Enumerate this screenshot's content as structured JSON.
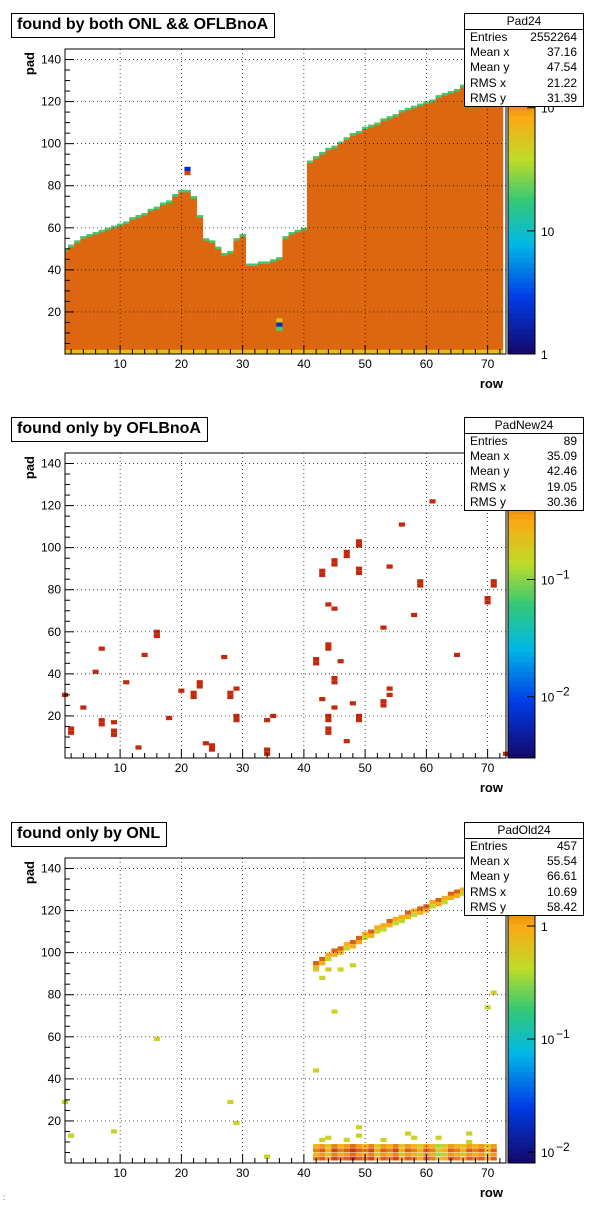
{
  "chart_data": [
    {
      "type": "heatmap",
      "title": "found by both ONL && OFLBnoA",
      "xlabel": "row",
      "ylabel": "pad",
      "xlim": [
        1,
        73
      ],
      "ylim": [
        0,
        145
      ],
      "x_ticks": [
        "10",
        "20",
        "30",
        "40",
        "50",
        "60",
        "70"
      ],
      "y_ticks": [
        "20",
        "40",
        "60",
        "80",
        "100",
        "120",
        "140"
      ],
      "z_scale": "log",
      "z_ticks": [
        {
          "label": "1",
          "exp": ""
        },
        {
          "label": "10",
          "exp": ""
        },
        {
          "label": "10",
          "exp": "2"
        }
      ],
      "zlim": [
        1,
        300
      ],
      "grid": true,
      "stats": {
        "name": "Pad24",
        "rows": [
          {
            "label": "Entries",
            "value": "2552264"
          },
          {
            "label": "Mean x",
            "value": "37.16"
          },
          {
            "label": "Mean y",
            "value": "47.54"
          },
          {
            "label": "RMS x",
            "value": "21.22"
          },
          {
            "label": "RMS y",
            "value": "31.39"
          }
        ]
      },
      "filled_rows": {
        "rows": [
          1,
          2,
          3,
          4,
          5,
          6,
          7,
          8,
          9,
          10,
          11,
          12,
          13,
          14,
          15,
          16,
          17,
          18,
          19,
          20,
          21,
          22,
          23,
          24,
          25,
          26,
          27,
          28,
          29,
          30,
          31,
          32,
          33,
          34,
          35,
          36,
          37,
          38,
          39,
          40,
          41,
          42,
          43,
          44,
          45,
          46,
          47,
          48,
          49,
          50,
          51,
          52,
          53,
          54,
          55,
          56,
          57,
          58,
          59,
          60,
          61,
          62,
          63,
          64,
          65,
          66,
          67,
          68,
          69,
          70,
          71,
          72
        ],
        "max_pad": [
          50,
          52,
          54,
          56,
          57,
          58,
          59,
          60,
          61,
          62,
          63,
          65,
          66,
          67,
          69,
          70,
          72,
          73,
          76,
          78,
          78,
          75,
          66,
          55,
          54,
          51,
          48,
          49,
          55,
          57,
          43,
          43,
          44,
          44,
          45,
          46,
          56,
          58,
          59,
          60,
          92,
          94,
          96,
          98,
          99,
          101,
          103,
          105,
          106,
          108,
          109,
          110,
          112,
          113,
          114,
          116,
          117,
          118,
          119,
          120,
          121,
          123,
          124,
          125,
          126,
          128,
          129,
          131,
          132,
          133,
          134,
          135
        ],
        "z": 200
      },
      "points": [
        {
          "x": 36,
          "y": 12,
          "z": 20
        },
        {
          "x": 36,
          "y": 14,
          "z": 2
        },
        {
          "x": 36,
          "y": 16,
          "z": 60
        },
        {
          "x": 21,
          "y": 88,
          "z": 2
        },
        {
          "x": 21,
          "y": 86,
          "z": 200
        }
      ]
    },
    {
      "type": "heatmap",
      "title": "found only by OFLBnoA",
      "xlabel": "row",
      "ylabel": "pad",
      "xlim": [
        1,
        73
      ],
      "ylim": [
        0,
        145
      ],
      "x_ticks": [
        "10",
        "20",
        "30",
        "40",
        "50",
        "60",
        "70"
      ],
      "y_ticks": [
        "20",
        "40",
        "60",
        "80",
        "100",
        "120",
        "140"
      ],
      "z_scale": "log",
      "z_ticks": [
        {
          "label": "10",
          "exp": "−2"
        },
        {
          "label": "10",
          "exp": "−1"
        }
      ],
      "zlim": [
        0.003,
        1.2
      ],
      "grid": true,
      "stats": {
        "name": "PadNew24",
        "rows": [
          {
            "label": "Entries",
            "value": "89"
          },
          {
            "label": "Mean x",
            "value": "35.09"
          },
          {
            "label": "Mean y",
            "value": "42.46"
          },
          {
            "label": "RMS x",
            "value": "19.05"
          },
          {
            "label": "RMS y",
            "value": "30.36"
          }
        ]
      },
      "points": [
        {
          "x": 1,
          "y": 30,
          "z": 1
        },
        {
          "x": 2,
          "y": 12,
          "z": 1
        },
        {
          "x": 2,
          "y": 14,
          "z": 1
        },
        {
          "x": 4,
          "y": 24,
          "z": 1
        },
        {
          "x": 6,
          "y": 41,
          "z": 1
        },
        {
          "x": 7,
          "y": 16,
          "z": 1
        },
        {
          "x": 7,
          "y": 18,
          "z": 1
        },
        {
          "x": 7,
          "y": 52,
          "z": 1
        },
        {
          "x": 9,
          "y": 17,
          "z": 1
        },
        {
          "x": 9,
          "y": 13,
          "z": 1
        },
        {
          "x": 9,
          "y": 11,
          "z": 1
        },
        {
          "x": 11,
          "y": 36,
          "z": 1
        },
        {
          "x": 13,
          "y": 5,
          "z": 1
        },
        {
          "x": 14,
          "y": 49,
          "z": 1
        },
        {
          "x": 16,
          "y": 58,
          "z": 1
        },
        {
          "x": 16,
          "y": 60,
          "z": 1
        },
        {
          "x": 18,
          "y": 19,
          "z": 1
        },
        {
          "x": 20,
          "y": 32,
          "z": 1
        },
        {
          "x": 22,
          "y": 29,
          "z": 1
        },
        {
          "x": 22,
          "y": 31,
          "z": 1
        },
        {
          "x": 23,
          "y": 34,
          "z": 1
        },
        {
          "x": 23,
          "y": 36,
          "z": 1
        },
        {
          "x": 24,
          "y": 7,
          "z": 1
        },
        {
          "x": 25,
          "y": 4,
          "z": 1
        },
        {
          "x": 25,
          "y": 6,
          "z": 1
        },
        {
          "x": 27,
          "y": 48,
          "z": 1
        },
        {
          "x": 28,
          "y": 29,
          "z": 1
        },
        {
          "x": 28,
          "y": 31,
          "z": 1
        },
        {
          "x": 29,
          "y": 33,
          "z": 1
        },
        {
          "x": 29,
          "y": 18,
          "z": 1
        },
        {
          "x": 29,
          "y": 20,
          "z": 1
        },
        {
          "x": 34,
          "y": 18,
          "z": 1
        },
        {
          "x": 34,
          "y": 2,
          "z": 1
        },
        {
          "x": 34,
          "y": 4,
          "z": 1
        },
        {
          "x": 35,
          "y": 20,
          "z": 1
        },
        {
          "x": 42,
          "y": 45,
          "z": 1
        },
        {
          "x": 42,
          "y": 47,
          "z": 1
        },
        {
          "x": 43,
          "y": 28,
          "z": 1
        },
        {
          "x": 43,
          "y": 87,
          "z": 1
        },
        {
          "x": 43,
          "y": 89,
          "z": 1
        },
        {
          "x": 44,
          "y": 12,
          "z": 1
        },
        {
          "x": 44,
          "y": 14,
          "z": 1
        },
        {
          "x": 44,
          "y": 18,
          "z": 1
        },
        {
          "x": 44,
          "y": 20,
          "z": 1
        },
        {
          "x": 44,
          "y": 52,
          "z": 1
        },
        {
          "x": 44,
          "y": 54,
          "z": 1
        },
        {
          "x": 44,
          "y": 73,
          "z": 1
        },
        {
          "x": 45,
          "y": 71,
          "z": 1
        },
        {
          "x": 45,
          "y": 92,
          "z": 1
        },
        {
          "x": 45,
          "y": 94,
          "z": 1
        },
        {
          "x": 45,
          "y": 24,
          "z": 1
        },
        {
          "x": 45,
          "y": 36,
          "z": 1
        },
        {
          "x": 45,
          "y": 38,
          "z": 1
        },
        {
          "x": 46,
          "y": 46,
          "z": 1
        },
        {
          "x": 47,
          "y": 8,
          "z": 1
        },
        {
          "x": 47,
          "y": 96,
          "z": 1
        },
        {
          "x": 47,
          "y": 98,
          "z": 1
        },
        {
          "x": 48,
          "y": 26,
          "z": 1
        },
        {
          "x": 49,
          "y": 88,
          "z": 1
        },
        {
          "x": 49,
          "y": 90,
          "z": 1
        },
        {
          "x": 49,
          "y": 101,
          "z": 1
        },
        {
          "x": 49,
          "y": 103,
          "z": 1
        },
        {
          "x": 49,
          "y": 18,
          "z": 1
        },
        {
          "x": 49,
          "y": 20,
          "z": 1
        },
        {
          "x": 53,
          "y": 25,
          "z": 1
        },
        {
          "x": 53,
          "y": 27,
          "z": 1
        },
        {
          "x": 53,
          "y": 62,
          "z": 1
        },
        {
          "x": 54,
          "y": 30,
          "z": 1
        },
        {
          "x": 54,
          "y": 33,
          "z": 1
        },
        {
          "x": 54,
          "y": 91,
          "z": 1
        },
        {
          "x": 56,
          "y": 111,
          "z": 1
        },
        {
          "x": 58,
          "y": 68,
          "z": 1
        },
        {
          "x": 59,
          "y": 82,
          "z": 1
        },
        {
          "x": 59,
          "y": 84,
          "z": 1
        },
        {
          "x": 61,
          "y": 122,
          "z": 1
        },
        {
          "x": 65,
          "y": 49,
          "z": 1
        },
        {
          "x": 70,
          "y": 74,
          "z": 1
        },
        {
          "x": 70,
          "y": 76,
          "z": 1
        },
        {
          "x": 71,
          "y": 82,
          "z": 1
        },
        {
          "x": 71,
          "y": 84,
          "z": 1
        },
        {
          "x": 73,
          "y": 2,
          "z": 1
        }
      ]
    },
    {
      "type": "heatmap",
      "title": "found only by ONL",
      "xlabel": "row",
      "ylabel": "pad",
      "xlim": [
        1,
        73
      ],
      "ylim": [
        0,
        145
      ],
      "x_ticks": [
        "10",
        "20",
        "30",
        "40",
        "50",
        "60",
        "70"
      ],
      "y_ticks": [
        "20",
        "40",
        "60",
        "80",
        "100",
        "120",
        "140"
      ],
      "z_scale": "log",
      "z_ticks": [
        {
          "label": "10",
          "exp": "−2"
        },
        {
          "label": "10",
          "exp": "−1"
        },
        {
          "label": "1",
          "exp": ""
        }
      ],
      "zlim": [
        0.008,
        4
      ],
      "grid": true,
      "stats": {
        "name": "PadOld24",
        "rows": [
          {
            "label": "Entries",
            "value": "457"
          },
          {
            "label": "Mean x",
            "value": "55.54"
          },
          {
            "label": "Mean y",
            "value": "66.61"
          },
          {
            "label": "RMS x",
            "value": "10.69"
          },
          {
            "label": "RMS y",
            "value": "58.42"
          }
        ]
      },
      "diagonal": {
        "rows": [
          42,
          43,
          44,
          45,
          46,
          47,
          48,
          49,
          50,
          51,
          52,
          53,
          54,
          55,
          56,
          57,
          58,
          59,
          60,
          61,
          62,
          63,
          64,
          65,
          66,
          67,
          68,
          69,
          70,
          71,
          72
        ],
        "pads": [
          95,
          97,
          99,
          101,
          102,
          104,
          105,
          107,
          109,
          110,
          112,
          113,
          115,
          116,
          117,
          119,
          120,
          121,
          122,
          124,
          125,
          126,
          128,
          129,
          130,
          131,
          133,
          134,
          135,
          136,
          137
        ],
        "z": [
          2,
          2,
          1,
          2,
          2,
          1,
          2,
          2,
          1,
          2,
          1,
          1,
          2,
          1,
          1,
          2,
          1,
          2,
          2,
          1,
          2,
          1,
          2,
          2,
          1,
          1,
          2,
          2,
          1,
          2,
          2
        ]
      },
      "bottom_band": {
        "rows": [
          42,
          43,
          44,
          45,
          46,
          47,
          48,
          49,
          50,
          51,
          52,
          53,
          54,
          55,
          56,
          57,
          58,
          59,
          60,
          61,
          62,
          63,
          64,
          65,
          66,
          67,
          68,
          69,
          70,
          71
        ],
        "z": [
          1.5,
          2,
          1,
          2.5,
          1.5,
          2,
          3,
          2,
          1.5,
          2.5,
          1,
          2,
          1.5,
          2.5,
          1,
          2,
          1.5,
          1,
          2,
          1.5,
          0.6,
          1,
          2,
          1.5,
          1,
          2,
          1.5,
          2,
          1,
          2
        ]
      },
      "points": [
        {
          "x": 1,
          "y": 29,
          "z": 0.5
        },
        {
          "x": 2,
          "y": 13,
          "z": 0.5
        },
        {
          "x": 9,
          "y": 15,
          "z": 0.5
        },
        {
          "x": 16,
          "y": 59,
          "z": 0.5
        },
        {
          "x": 28,
          "y": 29,
          "z": 0.5
        },
        {
          "x": 29,
          "y": 19,
          "z": 0.5
        },
        {
          "x": 34,
          "y": 3,
          "z": 0.5
        },
        {
          "x": 42,
          "y": 44,
          "z": 0.5
        },
        {
          "x": 43,
          "y": 88,
          "z": 0.5
        },
        {
          "x": 43,
          "y": 11,
          "z": 0.5
        },
        {
          "x": 42,
          "y": 92,
          "z": 0.6
        },
        {
          "x": 44,
          "y": 92,
          "z": 0.6
        },
        {
          "x": 45,
          "y": 72,
          "z": 0.5
        },
        {
          "x": 46,
          "y": 92,
          "z": 0.5
        },
        {
          "x": 48,
          "y": 94,
          "z": 0.5
        },
        {
          "x": 49,
          "y": 17,
          "z": 0.5
        },
        {
          "x": 49,
          "y": 13,
          "z": 0.5
        },
        {
          "x": 57,
          "y": 14,
          "z": 0.5
        },
        {
          "x": 58,
          "y": 12,
          "z": 0.5
        },
        {
          "x": 62,
          "y": 12,
          "z": 0.5
        },
        {
          "x": 67,
          "y": 14,
          "z": 0.5
        },
        {
          "x": 70,
          "y": 74,
          "z": 0.5
        },
        {
          "x": 71,
          "y": 81,
          "z": 0.5
        },
        {
          "x": 67,
          "y": 10,
          "z": 0.5
        },
        {
          "x": 44,
          "y": 12,
          "z": 0.5
        },
        {
          "x": 47,
          "y": 11,
          "z": 0.5
        },
        {
          "x": 53,
          "y": 11,
          "z": 0.5
        }
      ]
    }
  ],
  "footer_mark": ":"
}
